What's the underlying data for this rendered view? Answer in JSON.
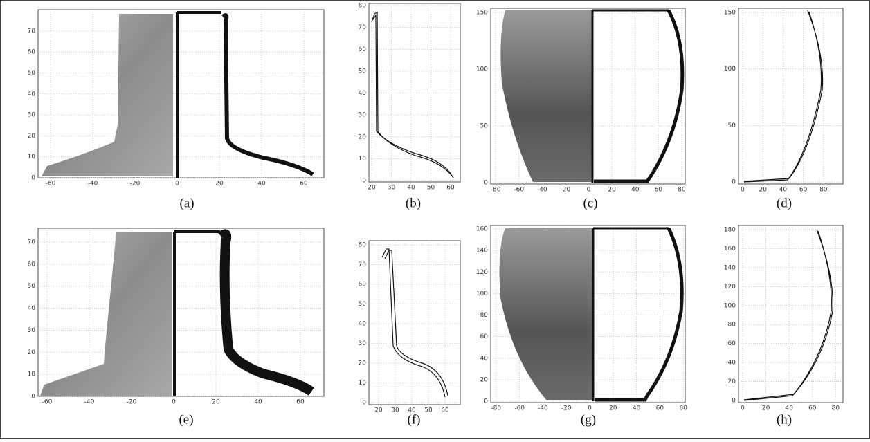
{
  "panels": [
    {
      "label": "(a)",
      "xticks": [
        -60,
        -40,
        -20,
        0,
        20,
        40,
        60
      ],
      "yticks": [
        0,
        10,
        20,
        30,
        40,
        50,
        60,
        70
      ]
    },
    {
      "label": "(b)",
      "xticks": [
        20,
        30,
        40,
        50,
        60
      ],
      "yticks": [
        0,
        10,
        20,
        30,
        40,
        50,
        60,
        70,
        80
      ]
    },
    {
      "label": "(c)",
      "xticks": [
        -80,
        -60,
        -40,
        -20,
        0,
        20,
        40,
        60,
        80
      ],
      "yticks": [
        0,
        50,
        100,
        150
      ]
    },
    {
      "label": "(d)",
      "xticks": [
        0,
        20,
        40,
        60,
        80
      ],
      "yticks": [
        0,
        50,
        100,
        150
      ]
    },
    {
      "label": "(e)",
      "xticks": [
        -60,
        -40,
        -20,
        0,
        20,
        40,
        60
      ],
      "yticks": [
        0,
        10,
        20,
        30,
        40,
        50,
        60,
        70
      ]
    },
    {
      "label": "(f)",
      "xticks": [
        20,
        30,
        40,
        50,
        60
      ],
      "yticks": [
        0,
        10,
        20,
        30,
        40,
        50,
        60,
        70,
        80
      ]
    },
    {
      "label": "(g)",
      "xticks": [
        -80,
        -60,
        -40,
        -20,
        0,
        20,
        40,
        60,
        80
      ],
      "yticks": [
        0,
        20,
        40,
        60,
        80,
        100,
        120,
        140,
        160
      ]
    },
    {
      "label": "(h)",
      "xticks": [
        0,
        20,
        40,
        60,
        80
      ],
      "yticks": [
        0,
        20,
        40,
        60,
        80,
        100,
        120,
        140,
        160,
        180
      ]
    }
  ]
}
